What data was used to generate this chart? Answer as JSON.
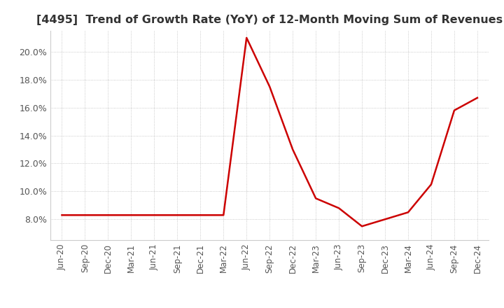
{
  "title": "[4495]  Trend of Growth Rate (YoY) of 12-Month Moving Sum of Revenues",
  "title_fontsize": 11.5,
  "background_color": "#ffffff",
  "line_color": "#cc0000",
  "ylim": [
    0.065,
    0.215
  ],
  "yticks": [
    0.08,
    0.1,
    0.12,
    0.14,
    0.16,
    0.18,
    0.2
  ],
  "x_labels": [
    "Jun-20",
    "Sep-20",
    "Dec-20",
    "Mar-21",
    "Jun-21",
    "Sep-21",
    "Dec-21",
    "Mar-22",
    "Jun-22",
    "Sep-22",
    "Dec-22",
    "Mar-23",
    "Jun-23",
    "Sep-23",
    "Dec-23",
    "Mar-24",
    "Jun-24",
    "Sep-24",
    "Dec-24"
  ],
  "values": [
    0.083,
    0.083,
    0.083,
    0.083,
    0.083,
    0.083,
    0.083,
    0.083,
    0.21,
    0.175,
    0.13,
    0.095,
    0.088,
    0.075,
    0.08,
    0.085,
    0.105,
    0.158,
    0.167
  ]
}
